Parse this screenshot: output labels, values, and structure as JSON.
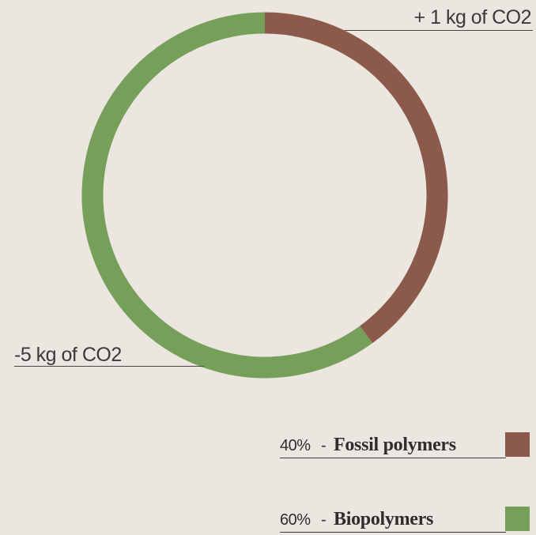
{
  "chart_data": {
    "type": "pie",
    "style": "donut",
    "slices": [
      {
        "label": "Fossil polymers",
        "value": 40,
        "percent_label": "40%",
        "color": "#8b5a4a",
        "callout": "+ 1 kg of CO2"
      },
      {
        "label": "Biopolymers",
        "value": 60,
        "percent_label": "60%",
        "color": "#76a05a",
        "callout": "-5 kg of CO2"
      }
    ],
    "legend": "bottom-right"
  },
  "callouts": {
    "top": "+ 1 kg of CO2",
    "bottom": "-5 kg of CO2"
  },
  "legend": [
    {
      "percent": "40%",
      "separator": "-",
      "name": "Fossil polymers",
      "color": "#8b5a4a"
    },
    {
      "percent": "60%",
      "separator": "-",
      "name": "Biopolymers",
      "color": "#76a05a"
    }
  ],
  "colors": {
    "background": "#ece6e1",
    "fossil": "#8b5a4a",
    "bio": "#76a05a"
  }
}
